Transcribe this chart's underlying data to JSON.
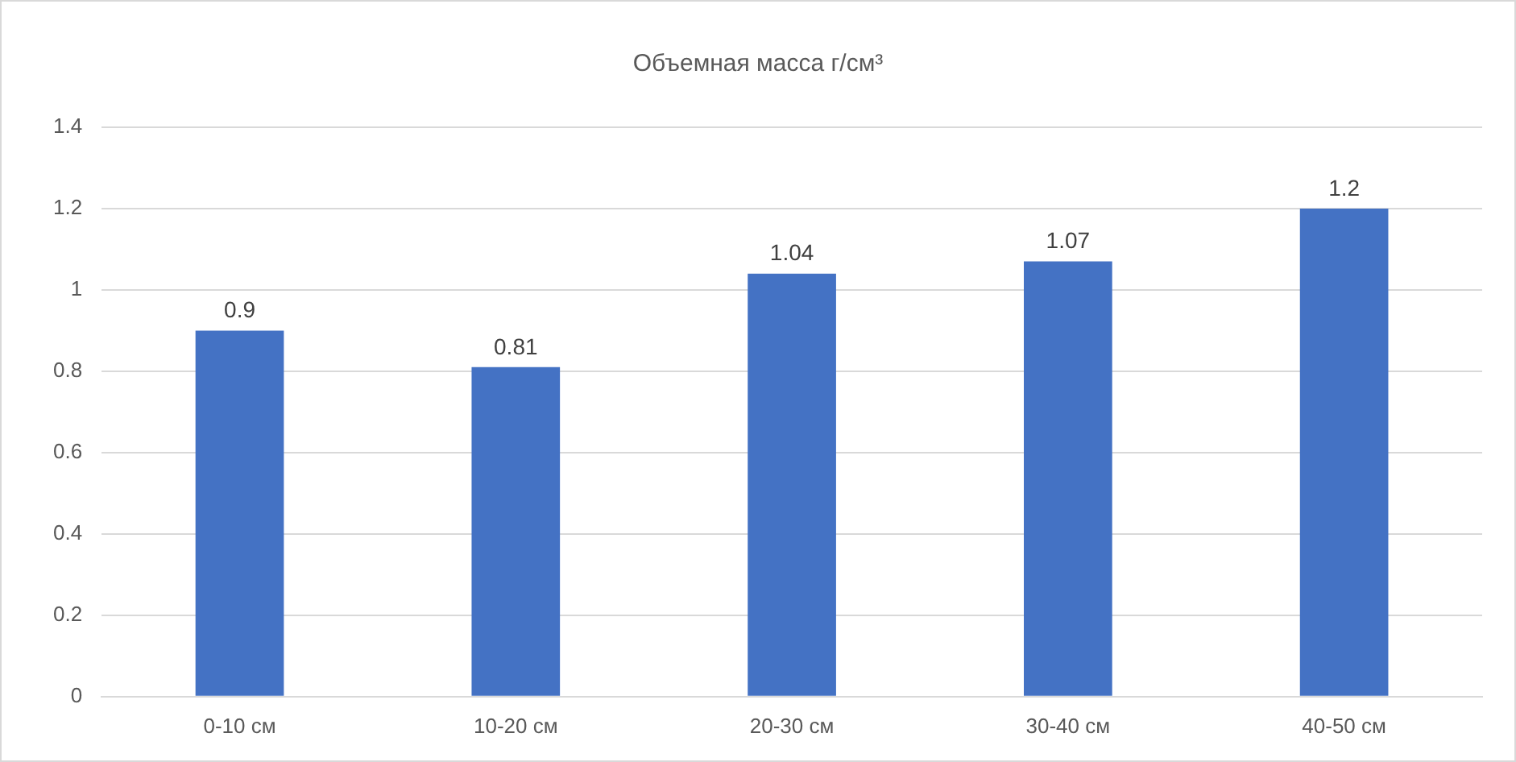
{
  "chart_data": {
    "type": "bar",
    "title": "Объемная масса г/см³",
    "categories": [
      "0-10 см",
      "10-20 см",
      "20-30 см",
      "30-40 см",
      "40-50 см"
    ],
    "values": [
      0.9,
      0.81,
      1.04,
      1.07,
      1.2
    ],
    "color": "#4472c4",
    "ylim": [
      0,
      1.4
    ],
    "yticks": [
      0,
      0.2,
      0.4,
      0.6,
      0.8,
      1,
      1.2,
      1.4
    ],
    "grid": "y",
    "data_labels": true,
    "legend": false
  }
}
